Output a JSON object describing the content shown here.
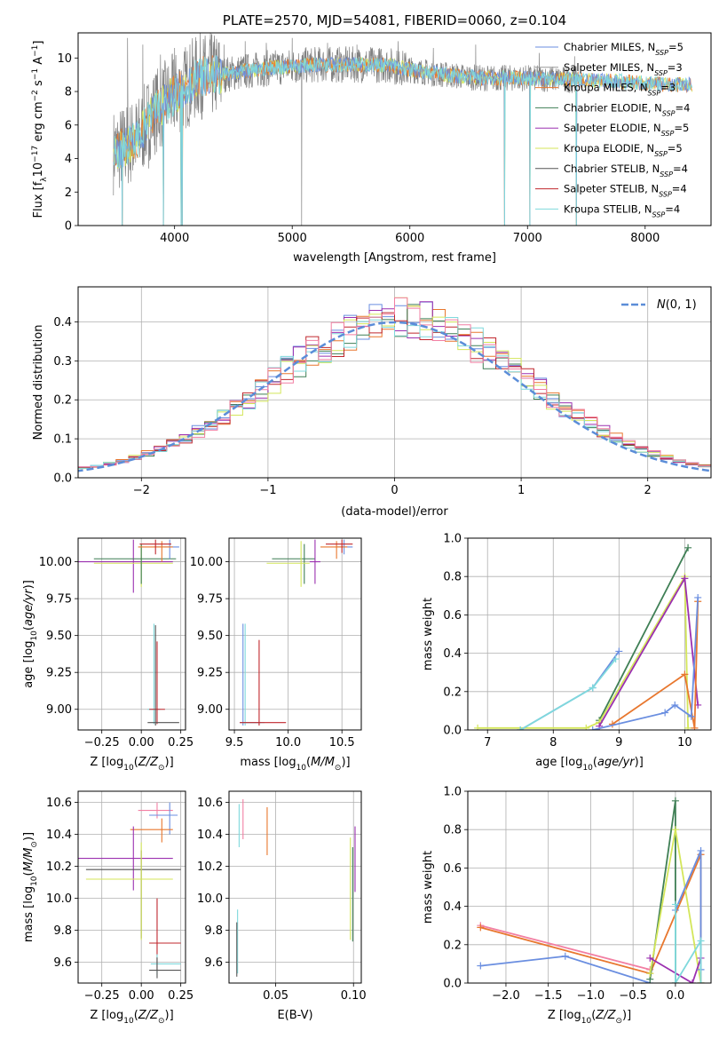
{
  "colors": {
    "chabrier_miles": "#6a8ee0",
    "salpeter_miles": "#9a9a9a",
    "kroupa_miles": "#e8772e",
    "chabrier_elodie": "#3f7f55",
    "salpeter_elodie": "#9b30b0",
    "kroupa_elodie": "#d4e65a",
    "chabrier_stelib": "#555555",
    "salpeter_stelib": "#c0272d",
    "kroupa_stelib": "#7fd9dc",
    "pink": "#f27fa3",
    "gauss": "#5b8dd8"
  },
  "chart_data": [
    {
      "id": "spectrum",
      "type": "line",
      "title": "PLATE=2570, MJD=54081, FIBERID=0060, z=0.104",
      "xlabel": "wavelength [Angstrom, rest frame]",
      "ylabel": "Flux [f_λ 10^-17 erg cm^-2 s^-1 A^-1]",
      "xlim": [
        3180,
        8560
      ],
      "ylim": [
        0,
        11.5
      ],
      "xticks": [
        "4000",
        "5000",
        "6000",
        "7000",
        "8000"
      ],
      "yticks": [
        "0",
        "2",
        "4",
        "6",
        "8",
        "10"
      ],
      "legend_position": "right",
      "legend": [
        {
          "base": "Chabrier MILES, N",
          "sub": "SSP",
          "tail": "=5",
          "color": "chabrier_miles"
        },
        {
          "base": "Salpeter MILES, N",
          "sub": "SSP",
          "tail": "=3",
          "color": "salpeter_miles"
        },
        {
          "base": "Kroupa MILES, N",
          "sub": "SSP",
          "tail": "=3",
          "color": "kroupa_miles"
        },
        {
          "base": "Chabrier ELODIE, N",
          "sub": "SSP",
          "tail": "=4",
          "color": "chabrier_elodie"
        },
        {
          "base": "Salpeter ELODIE, N",
          "sub": "SSP",
          "tail": "=5",
          "color": "salpeter_elodie"
        },
        {
          "base": "Kroupa ELODIE, N",
          "sub": "SSP",
          "tail": "=5",
          "color": "kroupa_elodie"
        },
        {
          "base": "Chabrier STELIB, N",
          "sub": "SSP",
          "tail": "=4",
          "color": "chabrier_stelib"
        },
        {
          "base": "Salpeter STELIB, N",
          "sub": "SSP",
          "tail": "=4",
          "color": "salpeter_stelib"
        },
        {
          "base": "Kroupa STELIB, N",
          "sub": "SSP",
          "tail": "=4",
          "color": "kroupa_stelib"
        }
      ],
      "continuum": [
        [
          3480,
          4.4
        ],
        [
          3600,
          4.8
        ],
        [
          3700,
          5.3
        ],
        [
          3800,
          6.6
        ],
        [
          3900,
          7.2
        ],
        [
          4000,
          7.8
        ],
        [
          4100,
          8.3
        ],
        [
          4200,
          8.9
        ],
        [
          4400,
          9.0
        ],
        [
          4600,
          9.2
        ],
        [
          4800,
          9.4
        ],
        [
          5000,
          9.5
        ],
        [
          5200,
          9.6
        ],
        [
          5500,
          9.6
        ],
        [
          5800,
          9.6
        ],
        [
          6000,
          9.3
        ],
        [
          6300,
          9.0
        ],
        [
          6600,
          8.8
        ],
        [
          7000,
          8.8
        ],
        [
          7400,
          8.7
        ],
        [
          7800,
          8.6
        ],
        [
          8200,
          8.4
        ],
        [
          8400,
          8.4
        ]
      ],
      "dips": [
        [
          3555,
          0
        ],
        [
          3905,
          0
        ],
        [
          4055,
          0
        ],
        [
          4065,
          0
        ],
        [
          6805,
          0
        ],
        [
          7020,
          0
        ],
        [
          7415,
          0
        ]
      ],
      "gray_spikes": [
        [
          3600,
          11.2
        ],
        [
          3650,
          3.6
        ],
        [
          3730,
          10.8
        ],
        [
          3780,
          3.4
        ],
        [
          3880,
          10.2
        ],
        [
          4000,
          10.6
        ],
        [
          4150,
          10.9
        ],
        [
          4300,
          11.1
        ],
        [
          4420,
          10.8
        ],
        [
          4600,
          11.0
        ],
        [
          4780,
          10.9
        ],
        [
          5000,
          11.2
        ],
        [
          5080,
          0
        ],
        [
          5300,
          10.9
        ],
        [
          5550,
          10.8
        ],
        [
          5900,
          11.0
        ],
        [
          6200,
          10.6
        ],
        [
          6560,
          10.8
        ],
        [
          7100,
          10.3
        ],
        [
          7400,
          10.1
        ]
      ]
    },
    {
      "id": "residuals",
      "type": "histogram",
      "xlabel": "(data-model)/error",
      "ylabel": "Normed distribution",
      "xlim": [
        -2.5,
        2.5
      ],
      "ylim": [
        0,
        0.49
      ],
      "xticks": [
        "−2",
        "−1",
        "0",
        "1",
        "2"
      ],
      "yticks": [
        "0.0",
        "0.1",
        "0.2",
        "0.3",
        "0.4"
      ],
      "grid": true,
      "legend_label": "N(0, 1)",
      "legend_position": "top-right",
      "bin_width": 0.1,
      "hist_series": [
        "chabrier_miles",
        "kroupa_miles",
        "chabrier_elodie",
        "salpeter_elodie",
        "kroupa_elodie",
        "salpeter_stelib",
        "kroupa_stelib",
        "pink"
      ]
    },
    {
      "id": "age_vs_Z",
      "type": "errorbar",
      "xlabel": "Z [log10(Z/Z☉)]",
      "ylabel": "age [log10(age/yr)]",
      "xlim": [
        -0.4,
        0.28
      ],
      "ylim": [
        8.86,
        10.16
      ],
      "xticks": [
        "−0.25",
        "0.00",
        "0.25"
      ],
      "yticks": [
        "9.00",
        "9.25",
        "9.50",
        "9.75",
        "10.00"
      ],
      "grid": true,
      "points": [
        {
          "c": "salpeter_elodie",
          "x": -0.05,
          "y": 10.0,
          "xe": [
            -0.4,
            0.2
          ],
          "ye": [
            9.79,
            10.15
          ]
        },
        {
          "c": "kroupa_elodie",
          "x": 0.0,
          "y": 9.99,
          "xe": [
            -0.3,
            0.2
          ],
          "ye": [
            9.83,
            10.12
          ]
        },
        {
          "c": "chabrier_elodie",
          "x": 0.0,
          "y": 10.02,
          "xe": [
            -0.3,
            0.22
          ],
          "ye": [
            9.85,
            10.12
          ]
        },
        {
          "c": "chabrier_miles",
          "x": 0.18,
          "y": 10.1,
          "xe": [
            0.08,
            0.24
          ],
          "ye": [
            10.02,
            10.15
          ]
        },
        {
          "c": "kroupa_miles",
          "x": 0.13,
          "y": 10.1,
          "xe": [
            -0.02,
            0.2
          ],
          "ye": [
            10.0,
            10.14
          ]
        },
        {
          "c": "salpeter_stelib",
          "x": 0.09,
          "y": 10.12,
          "xe": [
            -0.01,
            0.19
          ],
          "ye": [
            10.05,
            10.15
          ]
        },
        {
          "c": "kroupa_stelib",
          "x": 0.08,
          "y": 9.0,
          "xe": [
            0.04,
            0.12
          ],
          "ye": [
            8.9,
            9.58
          ]
        },
        {
          "c": "salpeter_stelib",
          "x": 0.1,
          "y": 9.0,
          "xe": [
            0.05,
            0.15
          ],
          "ye": [
            8.9,
            9.46
          ]
        },
        {
          "c": "chabrier_stelib",
          "x": 0.09,
          "y": 8.91,
          "xe": [
            0.04,
            0.24
          ],
          "ye": [
            8.89,
            9.57
          ]
        }
      ]
    },
    {
      "id": "age_vs_mass",
      "type": "errorbar",
      "xlabel": "mass [log10(M/M☉)]",
      "ylabel": "",
      "xlim": [
        9.45,
        10.68
      ],
      "ylim": [
        8.86,
        10.16
      ],
      "xticks": [
        "9.5",
        "10.0",
        "10.5"
      ],
      "yticks": [
        "9.00",
        "9.25",
        "9.50",
        "9.75",
        "10.00"
      ],
      "grid": true,
      "points": [
        {
          "c": "chabrier_elodie",
          "x": 10.15,
          "y": 10.02,
          "xe": [
            9.85,
            10.25
          ],
          "ye": [
            9.85,
            10.12
          ]
        },
        {
          "c": "kroupa_elodie",
          "x": 10.12,
          "y": 9.99,
          "xe": [
            9.8,
            10.2
          ],
          "ye": [
            9.83,
            10.14
          ]
        },
        {
          "c": "salpeter_elodie",
          "x": 10.25,
          "y": 10.0,
          "xe": [
            10.2,
            10.3
          ],
          "ye": [
            9.85,
            10.15
          ]
        },
        {
          "c": "chabrier_miles",
          "x": 10.52,
          "y": 10.1,
          "xe": [
            10.45,
            10.6
          ],
          "ye": [
            10.05,
            10.15
          ]
        },
        {
          "c": "kroupa_miles",
          "x": 10.45,
          "y": 10.1,
          "xe": [
            10.3,
            10.55
          ],
          "ye": [
            10.02,
            10.14
          ]
        },
        {
          "c": "salpeter_stelib",
          "x": 10.5,
          "y": 10.12,
          "xe": [
            10.35,
            10.6
          ],
          "ye": [
            10.06,
            10.15
          ]
        },
        {
          "c": "chabrier_miles",
          "x": 9.58,
          "y": 8.91,
          "xe": [
            9.55,
            9.75
          ],
          "ye": [
            8.89,
            9.58
          ]
        },
        {
          "c": "kroupa_stelib",
          "x": 9.6,
          "y": 8.91,
          "xe": [
            9.56,
            9.78
          ],
          "ye": [
            8.89,
            9.58
          ]
        },
        {
          "c": "salpeter_stelib",
          "x": 9.73,
          "y": 8.91,
          "xe": [
            9.55,
            9.98
          ],
          "ye": [
            8.89,
            9.47
          ]
        }
      ]
    },
    {
      "id": "weight_vs_age",
      "type": "line",
      "xlabel": "age [log10(age/yr)]",
      "ylabel": "mass weight",
      "xlim": [
        6.7,
        10.4
      ],
      "ylim": [
        0,
        1.0
      ],
      "xticks": [
        "7",
        "8",
        "9",
        "10"
      ],
      "yticks": [
        "0.0",
        "0.2",
        "0.4",
        "0.6",
        "0.8",
        "1.0"
      ],
      "grid": true,
      "series": [
        {
          "c": "chabrier_elodie",
          "x": [
            8.7,
            10.05
          ],
          "y": [
            0.05,
            0.95
          ]
        },
        {
          "c": "kroupa_elodie",
          "x": [
            6.85,
            8.5,
            8.7,
            10.0,
            10.05
          ],
          "y": [
            0.01,
            0.01,
            0.04,
            0.8,
            0.01
          ]
        },
        {
          "c": "salpeter_elodie",
          "x": [
            8.7,
            10.0,
            10.2
          ],
          "y": [
            0.02,
            0.79,
            0.13
          ]
        },
        {
          "c": "kroupa_miles",
          "x": [
            8.9,
            10.0,
            10.15,
            10.2
          ],
          "y": [
            0.03,
            0.29,
            0.01,
            0.67
          ]
        },
        {
          "c": "chabrier_miles",
          "x": [
            8.6,
            9.7,
            9.85,
            10.1,
            10.2
          ],
          "y": [
            0.0,
            0.09,
            0.13,
            0.07,
            0.69
          ]
        },
        {
          "c": "chabrier_miles",
          "x": [
            7.5,
            8.6,
            9.0
          ],
          "y": [
            0.0,
            0.22,
            0.41
          ]
        },
        {
          "c": "kroupa_stelib",
          "x": [
            7.5,
            8.6,
            8.95
          ],
          "y": [
            0.0,
            0.22,
            0.37
          ]
        }
      ]
    },
    {
      "id": "mass_vs_Z",
      "type": "errorbar",
      "xlabel": "Z [log10(Z/Z☉)]",
      "ylabel": "mass [log10(M/M☉)]",
      "xlim": [
        -0.4,
        0.28
      ],
      "ylim": [
        9.47,
        10.67
      ],
      "xticks": [
        "−0.25",
        "0.00",
        "0.25"
      ],
      "yticks": [
        "9.6",
        "9.8",
        "10.0",
        "10.2",
        "10.4",
        "10.6"
      ],
      "grid": true,
      "points": [
        {
          "c": "pink",
          "x": 0.1,
          "y": 10.55,
          "xe": [
            -0.02,
            0.2
          ],
          "ye": [
            10.5,
            10.6
          ]
        },
        {
          "c": "chabrier_miles",
          "x": 0.18,
          "y": 10.52,
          "xe": [
            0.05,
            0.23
          ],
          "ye": [
            10.4,
            10.6
          ]
        },
        {
          "c": "kroupa_miles",
          "x": 0.13,
          "y": 10.43,
          "xe": [
            -0.07,
            0.2
          ],
          "ye": [
            10.35,
            10.5
          ]
        },
        {
          "c": "salpeter_elodie",
          "x": -0.05,
          "y": 10.25,
          "xe": [
            -0.4,
            0.2
          ],
          "ye": [
            10.05,
            10.45
          ]
        },
        {
          "c": "chabrier_stelib",
          "x": 0.0,
          "y": 10.18,
          "xe": [
            -0.35,
            0.25
          ],
          "ye": [
            9.75,
            10.3
          ]
        },
        {
          "c": "kroupa_elodie",
          "x": 0.0,
          "y": 10.12,
          "xe": [
            -0.35,
            0.2
          ],
          "ye": [
            9.74,
            10.35
          ]
        },
        {
          "c": "salpeter_stelib",
          "x": 0.1,
          "y": 9.72,
          "xe": [
            0.05,
            0.25
          ],
          "ye": [
            9.55,
            10.0
          ]
        },
        {
          "c": "kroupa_stelib",
          "x": 0.1,
          "y": 9.59,
          "xe": [
            0.06,
            0.25
          ],
          "ye": [
            9.52,
            9.65
          ]
        },
        {
          "c": "chabrier_stelib",
          "x": 0.1,
          "y": 9.55,
          "xe": [
            0.05,
            0.25
          ],
          "ye": [
            9.5,
            9.63
          ]
        }
      ]
    },
    {
      "id": "mass_vs_ebv",
      "type": "errorbar",
      "xlabel": "E(B-V)",
      "ylabel": "",
      "xlim": [
        0.02,
        0.105
      ],
      "ylim": [
        9.47,
        10.67
      ],
      "xticks": [
        "0.05",
        "0.10"
      ],
      "yticks": [
        "9.6",
        "9.8",
        "10.0",
        "10.2",
        "10.4",
        "10.6"
      ],
      "grid": true,
      "points": [
        {
          "c": "pink",
          "x": 0.029,
          "y": 10.5,
          "xe": [
            0.029,
            0.029
          ],
          "ye": [
            10.37,
            10.62
          ]
        },
        {
          "c": "kroupa_stelib",
          "x": 0.0265,
          "y": 10.45,
          "xe": [
            0.0265,
            0.0265
          ],
          "ye": [
            10.32,
            10.59
          ]
        },
        {
          "c": "kroupa_miles",
          "x": 0.0445,
          "y": 10.42,
          "xe": [
            0.0445,
            0.0445
          ],
          "ye": [
            10.27,
            10.57
          ]
        },
        {
          "c": "salpeter_elodie",
          "x": 0.101,
          "y": 10.25,
          "xe": [
            0.101,
            0.101
          ],
          "ye": [
            10.04,
            10.45
          ]
        },
        {
          "c": "kroupa_elodie",
          "x": 0.098,
          "y": 10.1,
          "xe": [
            0.098,
            0.098
          ],
          "ye": [
            9.74,
            10.38
          ]
        },
        {
          "c": "chabrier_elodie",
          "x": 0.0995,
          "y": 10.05,
          "xe": [
            0.0995,
            0.0995
          ],
          "ye": [
            9.73,
            10.32
          ]
        },
        {
          "c": "kroupa_stelib",
          "x": 0.0255,
          "y": 9.8,
          "xe": [
            0.0255,
            0.0255
          ],
          "ye": [
            9.53,
            9.93
          ]
        },
        {
          "c": "chabrier_stelib",
          "x": 0.025,
          "y": 9.7,
          "xe": [
            0.025,
            0.025
          ],
          "ye": [
            9.51,
            9.85
          ]
        }
      ]
    },
    {
      "id": "weight_vs_Z",
      "type": "line",
      "xlabel": "Z [log10(Z/Z☉)]",
      "ylabel": "mass weight",
      "xlim": [
        -2.45,
        0.42
      ],
      "ylim": [
        0,
        1.0
      ],
      "xticks": [
        "−2.0",
        "−1.5",
        "−1.0",
        "−0.5",
        "0.0"
      ],
      "yticks": [
        "0.0",
        "0.2",
        "0.4",
        "0.6",
        "0.8",
        "1.0"
      ],
      "grid": true,
      "series": [
        {
          "c": "pink",
          "x": [
            -2.3,
            -0.3
          ],
          "y": [
            0.3,
            0.07
          ]
        },
        {
          "c": "kroupa_miles",
          "x": [
            -2.3,
            -0.3,
            0.3,
            0.3
          ],
          "y": [
            0.29,
            0.05,
            0.67,
            0.0
          ]
        },
        {
          "c": "chabrier_miles",
          "x": [
            -2.3,
            -1.3,
            -0.3
          ],
          "y": [
            0.09,
            0.14,
            0.0
          ]
        },
        {
          "c": "chabrier_elodie",
          "x": [
            -0.3,
            0.0,
            0.0
          ],
          "y": [
            0.02,
            0.95,
            0.0
          ]
        },
        {
          "c": "kroupa_elodie",
          "x": [
            -0.3,
            0.0,
            0.3
          ],
          "y": [
            0.05,
            0.8,
            0.0
          ]
        },
        {
          "c": "salpeter_elodie",
          "x": [
            -0.3,
            0.2,
            0.3
          ],
          "y": [
            0.13,
            0.0,
            0.13
          ]
        },
        {
          "c": "chabrier_miles",
          "x": [
            0.0,
            0.3,
            0.3
          ],
          "y": [
            0.38,
            0.69,
            0.07
          ]
        },
        {
          "c": "kroupa_stelib",
          "x": [
            0.0,
            0.0,
            0.3,
            0.3
          ],
          "y": [
            0.41,
            0.0,
            0.22,
            0.0
          ]
        }
      ]
    }
  ]
}
